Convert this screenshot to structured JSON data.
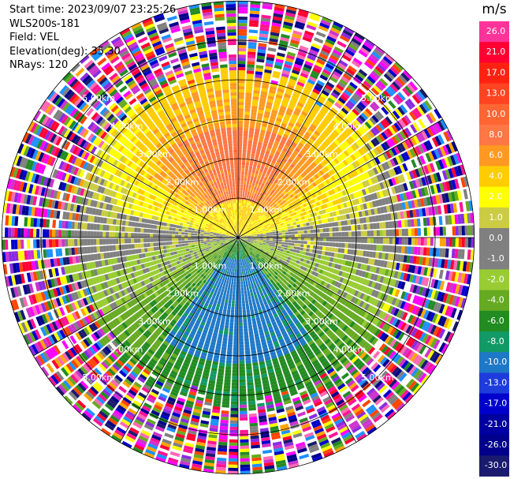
{
  "header": {
    "start_time": "Start time: 2023/09/07 23:25:26",
    "instrument": "WLS200s-181",
    "field": "Field: VEL",
    "elevation": "Elevation(deg): 35.30",
    "nrays": "NRays: 120"
  },
  "chart_data": {
    "type": "heatmap",
    "projection": "polar PPI",
    "field": "VEL",
    "units": "m/s",
    "n_rays": 120,
    "elevation_deg": 35.3,
    "max_range_km": 6.0,
    "range_ring_labels": [
      "1.00km",
      "2.00km",
      "3.00km",
      "4.00km",
      "5.00km"
    ],
    "colorbar": {
      "title": "m/s",
      "tick_labels": [
        "26.0",
        "21.0",
        "17.0",
        "13.0",
        "10.0",
        "8.0",
        "6.0",
        "4.0",
        "2.0",
        "1.0",
        "0.0",
        "-1.0",
        "-2.0",
        "-4.0",
        "-6.0",
        "-8.0",
        "-10.0",
        "-13.0",
        "-17.0",
        "-21.0",
        "-26.0",
        "-30.0"
      ],
      "colors": [
        "#ff3399",
        "#ff0033",
        "#ff2211",
        "#ff4422",
        "#ff6633",
        "#ff7744",
        "#ff9922",
        "#ffcc00",
        "#ffff00",
        "#cccc44",
        "#808080",
        "#808080",
        "#99cc33",
        "#66aa22",
        "#228b22",
        "#119966",
        "#1e78c8",
        "#1e3cdc",
        "#0000cd",
        "#0000a0",
        "#00008b",
        "#1a1a6e"
      ]
    },
    "velocity_pattern": {
      "north_sector_near": 8.0,
      "north_sector_far": 6.0,
      "north_ring_yellow": 2.0,
      "east_west_near": 0.0,
      "south_sector_near": -6.0,
      "south_sector_core": -10.0,
      "noise_start_km": 4.2
    },
    "grid": true
  }
}
